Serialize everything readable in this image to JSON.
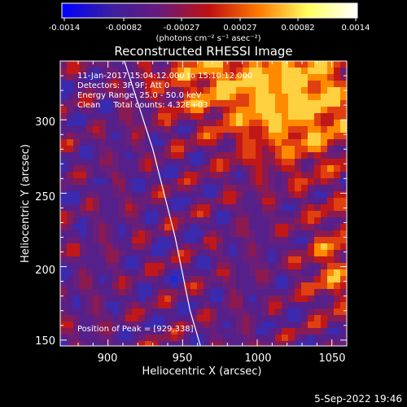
{
  "title": "Reconstructed RHESSI Image",
  "colorbar": {
    "ticks": [
      "-0.0014",
      "-0.00082",
      "-0.00027",
      "0.00027",
      "0.00082",
      "0.0014"
    ],
    "unit_label": "(photons cm⁻² s⁻¹ asec⁻²)",
    "range": [
      -0.0014,
      0.0014
    ],
    "colormap_stops": [
      "#0000ff",
      "#3a1ea0",
      "#6a1a7a",
      "#c01010",
      "#ff7a00",
      "#ffff60",
      "#ffffff"
    ]
  },
  "info_lines": [
    "11-Jan-2017 15:04:12.000 to 15:10:12.000",
    "Detectors: 3F 9F; Att 0",
    "Energy Range: 25.0 - 50.0 keV",
    "Clean     Total counts: 4.32E+03"
  ],
  "peak_label": "Position of Peak = [929,338]",
  "peak_position": [
    929,
    338
  ],
  "x_axis": {
    "label": "Heliocentric X (arcsec)",
    "ticks": [
      "900",
      "950",
      "1000",
      "1050"
    ],
    "range": [
      868,
      1060
    ]
  },
  "y_axis": {
    "label": "Heliocentric Y (arcsec)",
    "ticks": [
      "150",
      "200",
      "250",
      "300"
    ],
    "range": [
      146,
      340
    ]
  },
  "limb_curve": {
    "x": [
      911,
      930,
      945,
      955,
      962
    ],
    "y": [
      340,
      280,
      220,
      170,
      146
    ]
  },
  "date_stamp": "5-Sep-2022 19:46"
}
